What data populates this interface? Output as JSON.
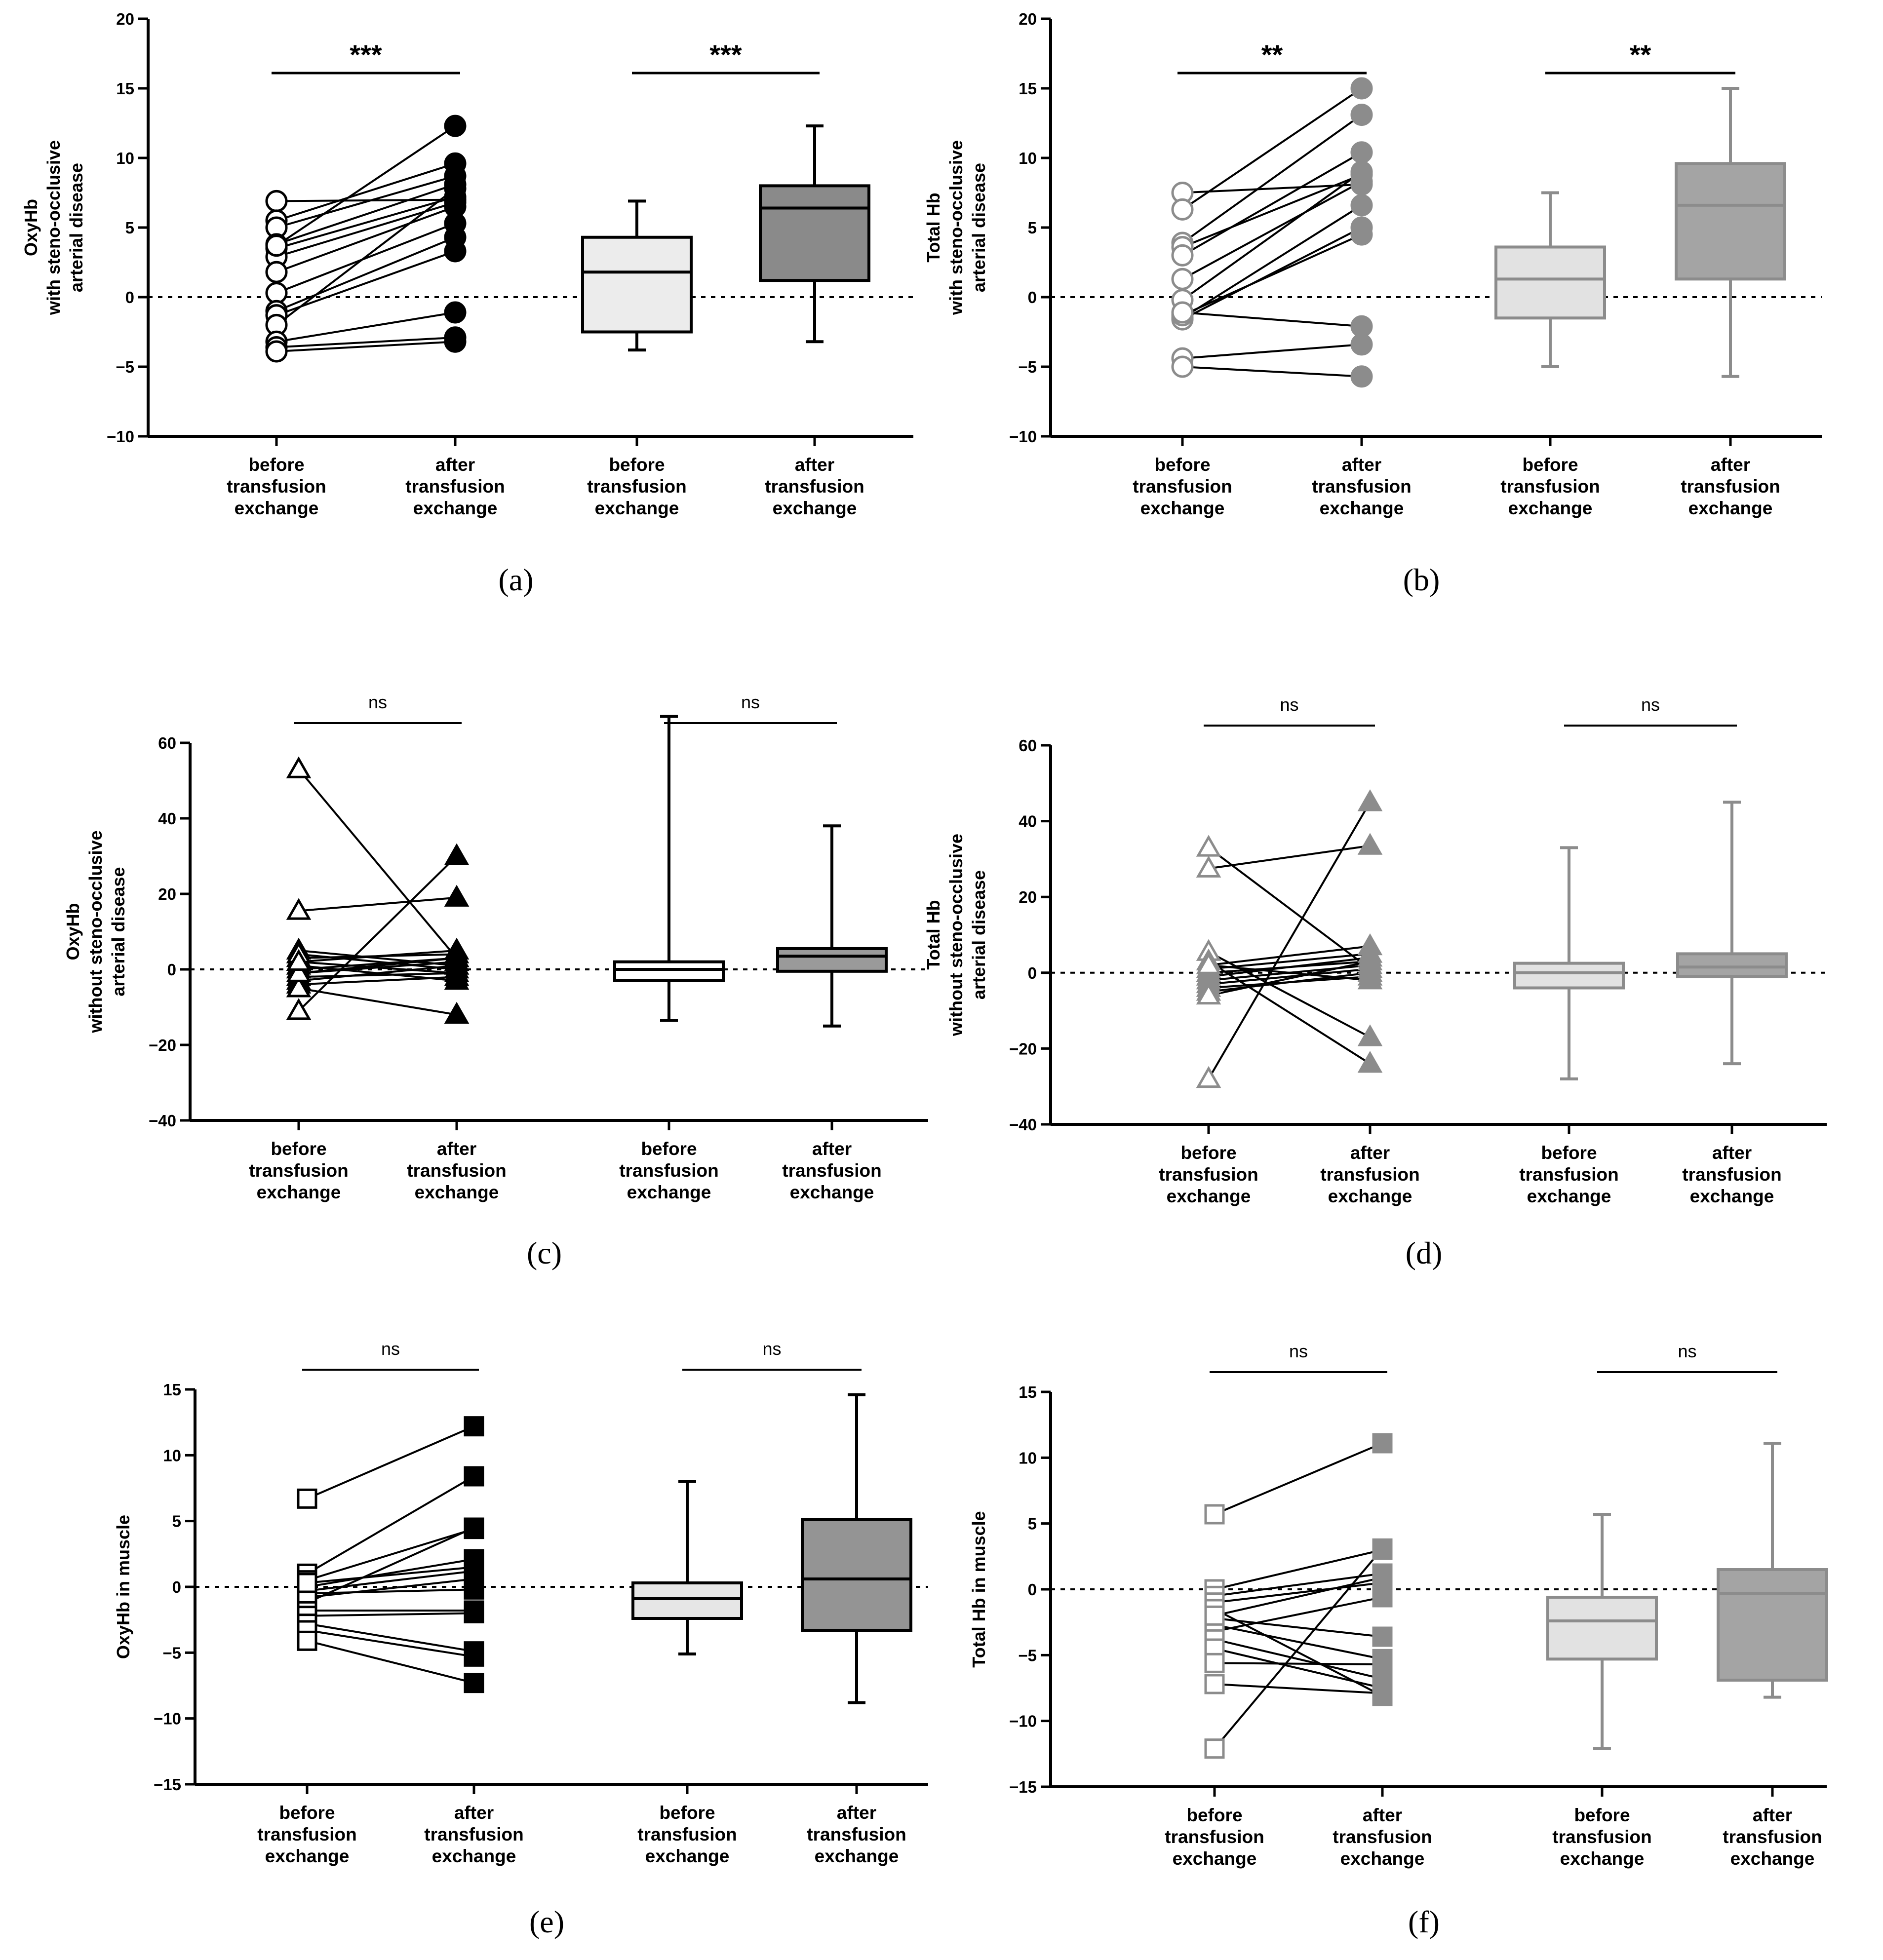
{
  "chart_data": [
    {
      "panel": "a",
      "caption": "(a)",
      "type": "scatter",
      "ylabel": [
        "OxyHb",
        "with steno-occlusive",
        "arterial disease"
      ],
      "ylim": [
        -10,
        20
      ],
      "yticks": [
        -10,
        -5,
        0,
        5,
        10,
        15,
        20
      ],
      "marker": "circle",
      "palette": {
        "line": "#000000",
        "boxBefore": "#ececec",
        "boxAfter": "#8a8a8a",
        "boxStroke": "#000000"
      },
      "categories": [
        "before\ntransfusion\nexchange",
        "after\ntransfusion\nexchange",
        "before\ntransfusion\nexchange",
        "after\ntransfusion\nexchange"
      ],
      "pairs": [
        [
          6.9,
          7.0
        ],
        [
          5.5,
          9.6
        ],
        [
          5.0,
          8.7
        ],
        [
          3.8,
          8.1
        ],
        [
          3.5,
          7.2
        ],
        [
          2.9,
          6.8
        ],
        [
          1.8,
          6.5
        ],
        [
          0.3,
          5.3
        ],
        [
          -1.0,
          4.3
        ],
        [
          -1.3,
          3.3
        ],
        [
          -2.0,
          7.8
        ],
        [
          -3.2,
          -1.1
        ],
        [
          -3.6,
          -2.9
        ],
        [
          -3.9,
          -3.2
        ],
        [
          3.7,
          12.3
        ]
      ],
      "boxes": [
        {
          "min": -3.8,
          "q1": -2.5,
          "median": 1.8,
          "q3": 4.3,
          "max": 6.9
        },
        {
          "min": -3.2,
          "q1": 1.2,
          "median": 6.4,
          "q3": 8.0,
          "max": 12.3
        }
      ],
      "significance": [
        "***",
        "***"
      ]
    },
    {
      "panel": "b",
      "caption": "(b)",
      "type": "scatter",
      "ylabel": [
        "Total Hb",
        "with steno-occlusive",
        "arterial disease"
      ],
      "ylim": [
        -10,
        20
      ],
      "yticks": [
        -10,
        -5,
        0,
        5,
        10,
        15,
        20
      ],
      "marker": "circle",
      "palette": {
        "line": "#000000",
        "boxBefore": "#e2e2e2",
        "boxAfter": "#a4a4a4",
        "boxStroke": "#8c8c8c",
        "point": "#8c8c8c"
      },
      "categories": [
        "before\ntransfusion\nexchange",
        "after\ntransfusion\nexchange",
        "before\ntransfusion\nexchange",
        "after\ntransfusion\nexchange"
      ],
      "pairs": [
        [
          7.5,
          8.1
        ],
        [
          6.3,
          15.0
        ],
        [
          3.9,
          13.1
        ],
        [
          3.6,
          8.8
        ],
        [
          3.0,
          10.4
        ],
        [
          1.3,
          8.3
        ],
        [
          -0.2,
          9.0
        ],
        [
          -1.5,
          6.6
        ],
        [
          -1.6,
          5.0
        ],
        [
          -1.3,
          4.5
        ],
        [
          -1.1,
          -2.1
        ],
        [
          -4.4,
          -3.4
        ],
        [
          -5.0,
          -5.7
        ]
      ],
      "boxes": [
        {
          "min": -5.0,
          "q1": -1.5,
          "median": 1.3,
          "q3": 3.6,
          "max": 7.5
        },
        {
          "min": -5.7,
          "q1": 1.3,
          "median": 6.6,
          "q3": 9.6,
          "max": 15.0
        }
      ],
      "significance": [
        "**",
        "**"
      ]
    },
    {
      "panel": "c",
      "caption": "(c)",
      "type": "scatter",
      "ylabel": [
        "OxyHb",
        "without steno-occlusive",
        "arterial disease"
      ],
      "ylim": [
        -40,
        60
      ],
      "yticks": [
        -40,
        -20,
        0,
        20,
        40,
        60
      ],
      "marker": "triangle",
      "palette": {
        "line": "#000000",
        "boxBefore": "#ffffff",
        "boxAfter": "#9a9a9a",
        "boxStroke": "#000000"
      },
      "categories": [
        "before\ntransfusion\nexchange",
        "after\ntransfusion\nexchange",
        "before\ntransfusion\nexchange",
        "after\ntransfusion\nexchange"
      ],
      "pairs": [
        [
          53,
          3
        ],
        [
          15.5,
          19
        ],
        [
          5,
          1
        ],
        [
          3,
          4
        ],
        [
          2,
          5
        ],
        [
          1,
          -3
        ],
        [
          0,
          3
        ],
        [
          -1,
          2
        ],
        [
          -2,
          -1
        ],
        [
          -3,
          1
        ],
        [
          -4,
          -2
        ],
        [
          -5,
          -12
        ],
        [
          -11,
          30
        ],
        [
          4,
          0
        ],
        [
          -1,
          3
        ],
        [
          2,
          -1
        ]
      ],
      "boxes": [
        {
          "min": -13.5,
          "q1": -3,
          "median": 0,
          "q3": 2,
          "max": 67
        },
        {
          "min": -15,
          "q1": -0.5,
          "median": 3.5,
          "q3": 5.5,
          "max": 38
        }
      ],
      "significance": [
        "ns",
        "ns"
      ]
    },
    {
      "panel": "d",
      "caption": "(d)",
      "type": "scatter",
      "ylabel": [
        "Total Hb",
        "without steno-occlusive",
        "arterial disease"
      ],
      "ylim": [
        -40,
        60
      ],
      "yticks": [
        -40,
        -20,
        0,
        20,
        40,
        60
      ],
      "marker": "triangle",
      "palette": {
        "line": "#000000",
        "boxBefore": "#e2e2e2",
        "boxAfter": "#a4a4a4",
        "boxStroke": "#8c8c8c",
        "point": "#8c8c8c"
      },
      "categories": [
        "before\ntransfusion\nexchange",
        "after\ntransfusion\nexchange",
        "before\ntransfusion\nexchange",
        "after\ntransfusion\nexchange"
      ],
      "pairs": [
        [
          33,
          1
        ],
        [
          27.5,
          33.5
        ],
        [
          5.5,
          -17
        ],
        [
          3,
          -24
        ],
        [
          2,
          7
        ],
        [
          1,
          5
        ],
        [
          0,
          3
        ],
        [
          -1,
          4
        ],
        [
          -2,
          2
        ],
        [
          -3,
          1
        ],
        [
          -4,
          -1
        ],
        [
          -5,
          0
        ],
        [
          -6,
          3
        ],
        [
          -28,
          45
        ],
        [
          2,
          -2
        ]
      ],
      "boxes": [
        {
          "min": -28,
          "q1": -4,
          "median": 0,
          "q3": 2.5,
          "max": 33
        },
        {
          "min": -24,
          "q1": -1,
          "median": 1.5,
          "q3": 5,
          "max": 45
        }
      ],
      "significance": [
        "ns",
        "ns"
      ]
    },
    {
      "panel": "e",
      "caption": "(e)",
      "type": "scatter",
      "ylabel": [
        "OxyHb in muscle"
      ],
      "ylim": [
        -15,
        15
      ],
      "yticks": [
        -15,
        -10,
        -5,
        0,
        5,
        10,
        15
      ],
      "marker": "square",
      "palette": {
        "line": "#000000",
        "boxBefore": "#e6e6e6",
        "boxAfter": "#949494",
        "boxStroke": "#000000"
      },
      "categories": [
        "before\ntransfusion\nexchange",
        "after\ntransfusion\nexchange",
        "before\ntransfusion\nexchange",
        "after\ntransfusion\nexchange"
      ],
      "pairs": [
        [
          6.7,
          12.2
        ],
        [
          1.0,
          8.4
        ],
        [
          0.5,
          4.4
        ],
        [
          0.0,
          2.1
        ],
        [
          -0.3,
          1.2
        ],
        [
          -0.8,
          0.6
        ],
        [
          -1.2,
          4.5
        ],
        [
          -1.8,
          -1.8
        ],
        [
          -2.2,
          -2.0
        ],
        [
          -2.8,
          -4.9
        ],
        [
          -3.3,
          -5.3
        ],
        [
          -4.1,
          -7.3
        ],
        [
          -0.5,
          -0.2
        ],
        [
          0.3,
          1.5
        ]
      ],
      "boxes": [
        {
          "min": -5.1,
          "q1": -2.4,
          "median": -0.9,
          "q3": 0.3,
          "max": 8.0
        },
        {
          "min": -8.8,
          "q1": -3.3,
          "median": 0.6,
          "q3": 5.1,
          "max": 14.6
        }
      ],
      "significance": [
        "ns",
        "ns"
      ]
    },
    {
      "panel": "f",
      "caption": "(f)",
      "type": "scatter",
      "ylabel": [
        "Total Hb in muscle"
      ],
      "ylim": [
        -15,
        15
      ],
      "yticks": [
        -15,
        -10,
        -5,
        0,
        5,
        10,
        15
      ],
      "marker": "square",
      "palette": {
        "line": "#000000",
        "boxBefore": "#e2e2e2",
        "boxAfter": "#a4a4a4",
        "boxStroke": "#8c8c8c",
        "point": "#8c8c8c"
      },
      "categories": [
        "before\ntransfusion\nexchange",
        "after\ntransfusion\nexchange",
        "before\ntransfusion\nexchange",
        "after\ntransfusion\nexchange"
      ],
      "pairs": [
        [
          5.7,
          11.1
        ],
        [
          0.0,
          3.0
        ],
        [
          -0.5,
          1.2
        ],
        [
          -1.0,
          0.5
        ],
        [
          -1.5,
          -8.1
        ],
        [
          -2.2,
          -3.6
        ],
        [
          -2.7,
          -5.3
        ],
        [
          -3.2,
          -0.6
        ],
        [
          -3.8,
          -6.8
        ],
        [
          -4.5,
          -7.5
        ],
        [
          -5.6,
          -5.7
        ],
        [
          -7.2,
          -7.9
        ],
        [
          -12.1,
          3.1
        ],
        [
          -2.0,
          0.9
        ]
      ],
      "boxes": [
        {
          "min": -12.1,
          "q1": -5.3,
          "median": -2.4,
          "q3": -0.6,
          "max": 5.7
        },
        {
          "min": -8.2,
          "q1": -6.9,
          "median": -0.3,
          "q3": 1.5,
          "max": 11.1
        }
      ],
      "significance": [
        "ns",
        "ns"
      ]
    }
  ]
}
